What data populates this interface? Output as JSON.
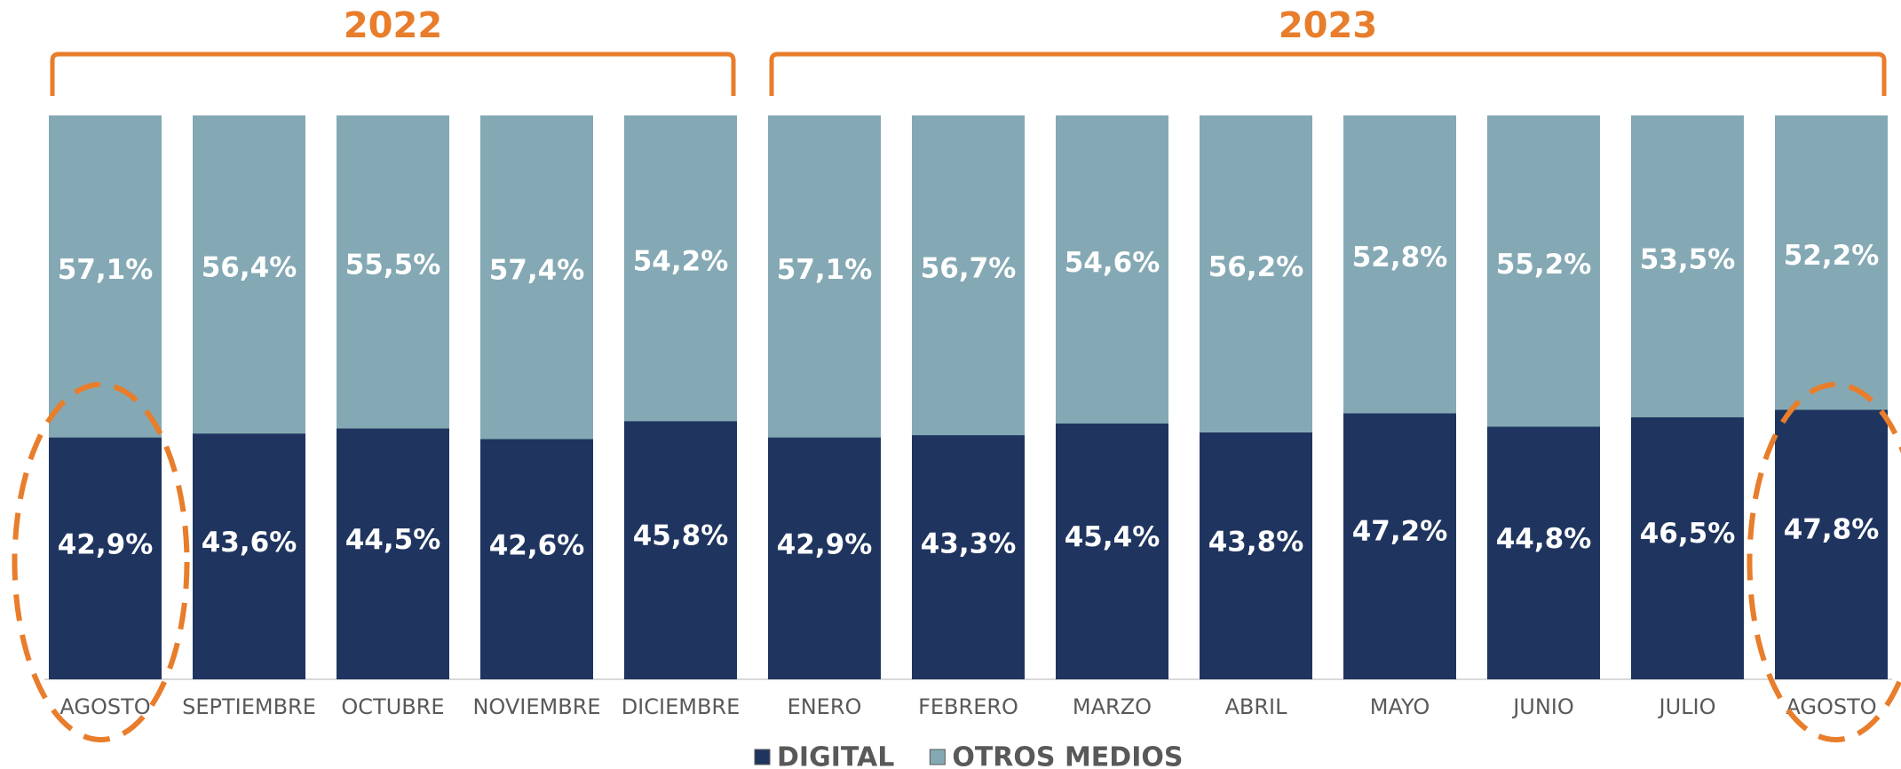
{
  "chart_data": {
    "type": "stacked_bar",
    "categories": [
      "AGOSTO",
      "SEPTIEMBRE",
      "OCTUBRE",
      "NOVIEMBRE",
      "DICIEMBRE",
      "ENERO",
      "FEBRERO",
      "MARZO",
      "ABRIL",
      "MAYO",
      "JUNIO",
      "JULIO",
      "AGOSTO"
    ],
    "groups": [
      {
        "label": "2022",
        "count": 5
      },
      {
        "label": "2023",
        "count": 8
      }
    ],
    "series": [
      {
        "name": "DIGITAL",
        "color": "#1f3560",
        "values": [
          42.9,
          43.6,
          44.5,
          42.6,
          45.8,
          42.9,
          43.3,
          45.4,
          43.8,
          47.2,
          44.8,
          46.5,
          47.8
        ],
        "value_labels": [
          "42,9%",
          "43,6%",
          "44,5%",
          "42,6%",
          "45,8%",
          "42,9%",
          "43,3%",
          "45,4%",
          "43,8%",
          "47,2%",
          "44,8%",
          "46,5%",
          "47,8%"
        ]
      },
      {
        "name": "OTROS MEDIOS",
        "color": "#84a9b4",
        "values": [
          57.1,
          56.4,
          55.5,
          57.4,
          54.2,
          57.1,
          56.7,
          54.6,
          56.2,
          52.8,
          55.2,
          53.5,
          52.2
        ],
        "value_labels": [
          "57,1%",
          "56,4%",
          "55,5%",
          "57,4%",
          "54,2%",
          "57,1%",
          "56,7%",
          "54,6%",
          "56,2%",
          "52,8%",
          "55,2%",
          "53,5%",
          "52,2%"
        ]
      }
    ],
    "legend": "bottom"
  }
}
